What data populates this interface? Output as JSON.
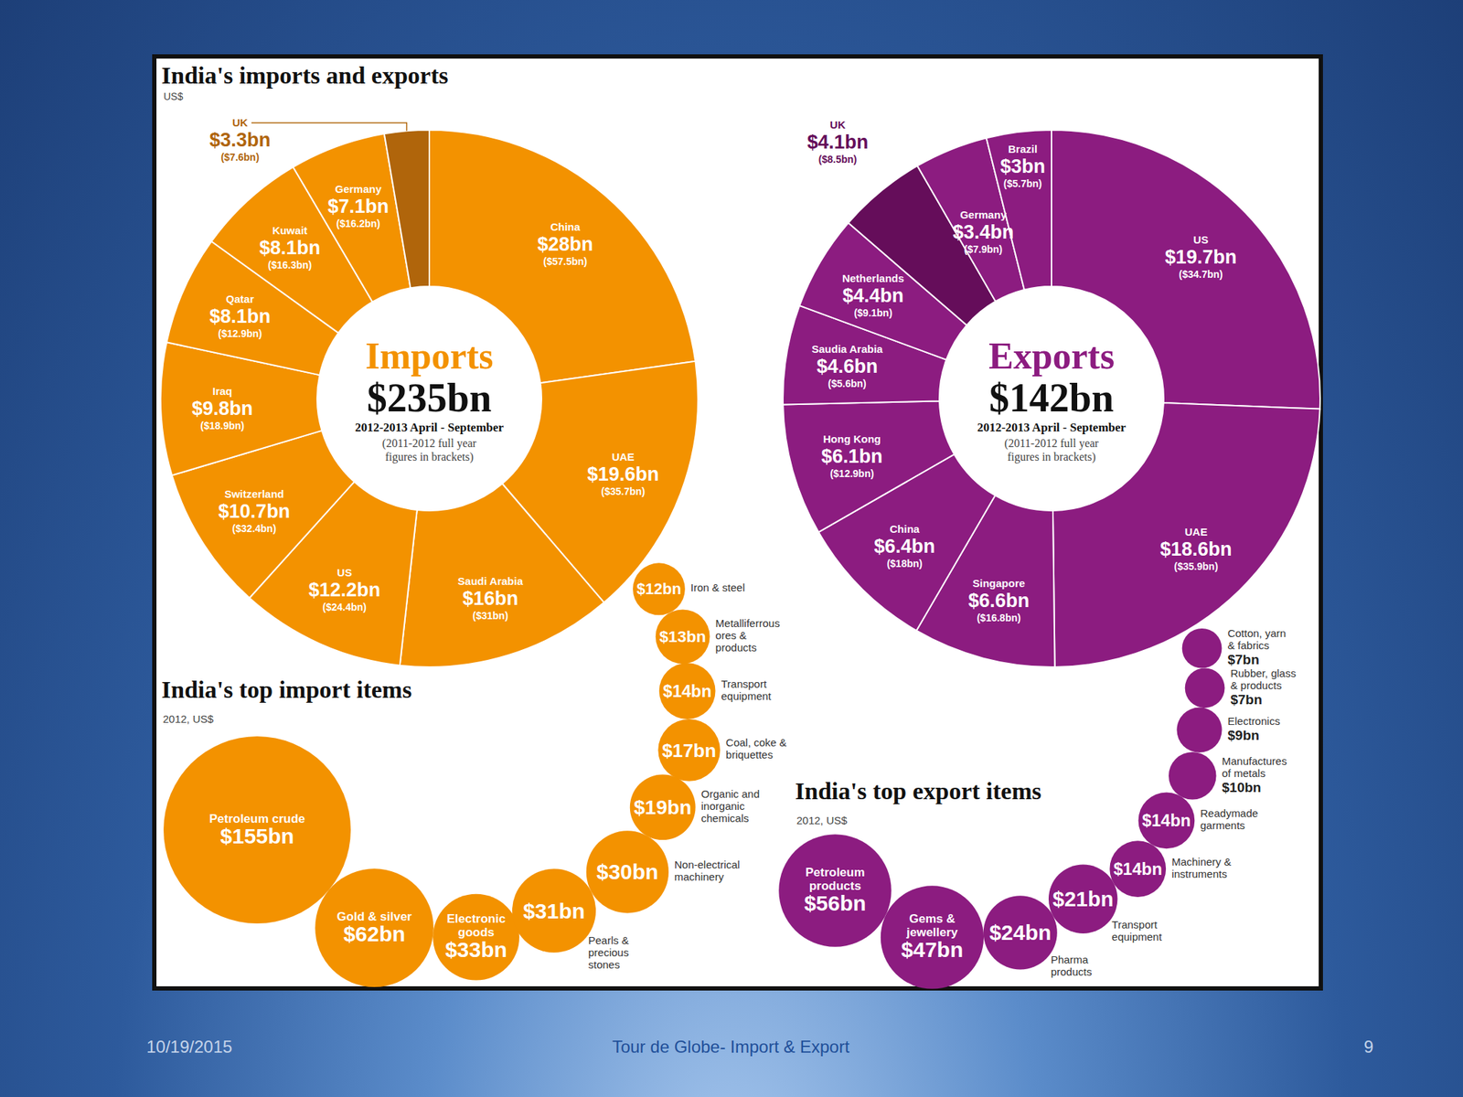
{
  "title": "India's imports and exports",
  "subtitle": "US$",
  "slide": {
    "date": "10/19/2015",
    "footer": "Tour de Globe- Import & Export",
    "page": "9"
  },
  "chart_data": [
    {
      "type": "pie",
      "title": "Imports",
      "total_label": "$235bn",
      "period": "2012-2013 April - September",
      "note": "(2011-2012 full year figures in brackets)",
      "categories": [
        "China",
        "UAE",
        "Saudi Arabia",
        "US",
        "Switzerland",
        "Iraq",
        "Qatar",
        "Kuwait",
        "Germany",
        "UK"
      ],
      "values": [
        28,
        19.6,
        16,
        12.2,
        10.7,
        9.8,
        8.1,
        8.1,
        7.1,
        3.3
      ],
      "value_labels": [
        "$28bn",
        "$19.6bn",
        "$16bn",
        "$12.2bn",
        "$10.7bn",
        "$9.8bn",
        "$8.1bn",
        "$8.1bn",
        "$7.1bn",
        "$3.3bn"
      ],
      "prior_labels": [
        "($57.5bn)",
        "($35.7bn)",
        "($31bn)",
        "($24.4bn)",
        "($32.4bn)",
        "($18.9bn)",
        "($12.9bn)",
        "($16.3bn)",
        "($16.2bn)",
        "($7.6bn)"
      ],
      "colors": [
        "#f39200",
        "#f39200",
        "#f39200",
        "#f39200",
        "#f39200",
        "#f39200",
        "#f39200",
        "#f39200",
        "#f39200",
        "#b0650b"
      ],
      "data_labels": true
    },
    {
      "type": "pie",
      "title": "Exports",
      "total_label": "$142bn",
      "period": "2012-2013 April - September",
      "note": "(2011-2012 full year figures in brackets)",
      "categories": [
        "US",
        "UAE",
        "Singapore",
        "China",
        "Hong Kong",
        "Saudia Arabia",
        "Netherlands",
        "UK",
        "Germany",
        "Brazil"
      ],
      "values": [
        19.7,
        18.6,
        6.6,
        6.4,
        6.1,
        4.6,
        4.4,
        4.1,
        3.4,
        3
      ],
      "value_labels": [
        "$19.7bn",
        "$18.6bn",
        "$6.6bn",
        "$6.4bn",
        "$6.1bn",
        "$4.6bn",
        "$4.4bn",
        "$4.1bn",
        "$3.4bn",
        "$3bn"
      ],
      "prior_labels": [
        "($34.7bn)",
        "($35.9bn)",
        "($16.8bn)",
        "($18bn)",
        "($12.9bn)",
        "($5.6bn)",
        "($9.1bn)",
        "($8.5bn)",
        "($7.9bn)",
        "($5.7bn)"
      ],
      "colors": [
        "#8c1c80",
        "#8c1c80",
        "#8c1c80",
        "#8c1c80",
        "#8c1c80",
        "#8c1c80",
        "#8c1c80",
        "#650d5a",
        "#8c1c80",
        "#8c1c80"
      ],
      "data_labels": true
    },
    {
      "type": "bubble",
      "title": "India's top import items",
      "subtitle": "2012, US$",
      "categories": [
        "Petroleum crude",
        "Gold & silver",
        "Electronic goods",
        "Pearls & precious stones",
        "Non-electrical machinery",
        "Organic and inorganic chemicals",
        "Coal, coke & briquettes",
        "Transport equipment",
        "Metalliferrous ores & products",
        "Iron & steel"
      ],
      "values": [
        155,
        62,
        33,
        31,
        30,
        19,
        17,
        14,
        13,
        12
      ],
      "value_labels": [
        "$155bn",
        "$62bn",
        "$33bn",
        "$31bn",
        "$30bn",
        "$19bn",
        "$17bn",
        "$14bn",
        "$13bn",
        "$12bn"
      ],
      "color": "#f39200",
      "data_labels": true
    },
    {
      "type": "bubble",
      "title": "India's top export items",
      "subtitle": "2012, US$",
      "categories": [
        "Petroleum products",
        "Gems & jewellery",
        "Pharma products",
        "Transport equipment",
        "Machinery & instruments",
        "Readymade garments",
        "Manufactures of metals",
        "Electronics",
        "Rubber, glass & products",
        "Cotton, yarn & fabrics"
      ],
      "values": [
        56,
        47,
        24,
        21,
        14,
        14,
        10,
        9,
        7,
        7
      ],
      "value_labels": [
        "$56bn",
        "$47bn",
        "$24bn",
        "$21bn",
        "$14bn",
        "$14bn",
        "$10bn",
        "$9bn",
        "$7bn",
        "$7bn"
      ],
      "color": "#8c1c80",
      "data_labels": true
    }
  ]
}
